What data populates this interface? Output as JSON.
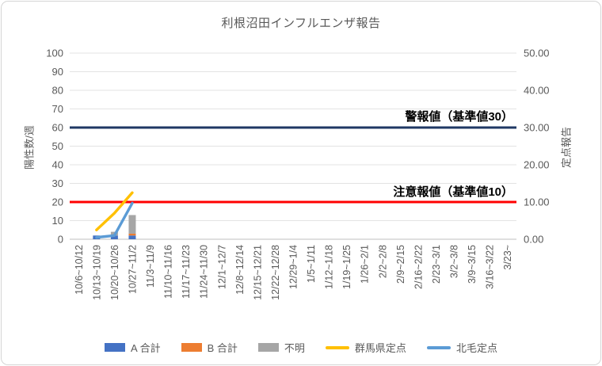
{
  "chart": {
    "title": "利根沼田インフルエンザ報告",
    "left_axis_title": "陽性数/週",
    "right_axis_title": "定点報告"
  },
  "chart_data": {
    "type": "combo-stacked-bar-line",
    "title": "利根沼田インフルエンザ報告",
    "categories": [
      "10/6~10/12",
      "10/13~10/19",
      "10/20~10/26",
      "10/27~11/2",
      "11/3~11/9",
      "11/10~11/16",
      "11/17~11/23",
      "11/24~11/30",
      "12/1~12/7",
      "12/8~12/14",
      "12/15~12/21",
      "12/22~12/28",
      "12/29~1/4",
      "1/5~1/11",
      "1/12~1/18",
      "1/19~1/25",
      "1/26~2/1",
      "2/2~2/8",
      "2/9~2/15",
      "2/16~2/22",
      "2/23~3/1",
      "3/2~3/8",
      "3/9~3/15",
      "3/16~3/22",
      "3/23~"
    ],
    "left_axis": {
      "title": "陽性数/週",
      "min": 0,
      "max": 100,
      "step": 10,
      "tick_labels": [
        "0",
        "10",
        "20",
        "30",
        "40",
        "50",
        "60",
        "70",
        "80",
        "90",
        "100"
      ]
    },
    "right_axis": {
      "title": "定点報告",
      "min": 0,
      "max": 50,
      "step": 10,
      "tick_labels": [
        "0.00",
        "10.00",
        "20.00",
        "30.00",
        "40.00",
        "50.00"
      ]
    },
    "grid": true,
    "legend_position": "bottom",
    "bar_series": [
      {
        "name": "A 合計",
        "color": "#4472c4",
        "axis": "left",
        "stacked": true,
        "values": [
          0,
          2,
          2,
          2,
          0,
          0,
          0,
          0,
          0,
          0,
          0,
          0,
          0,
          0,
          0,
          0,
          0,
          0,
          0,
          0,
          0,
          0,
          0,
          0,
          0
        ]
      },
      {
        "name": "B 合計",
        "color": "#ed7d31",
        "axis": "left",
        "stacked": true,
        "values": [
          0,
          0,
          0,
          1,
          0,
          0,
          0,
          0,
          0,
          0,
          0,
          0,
          0,
          0,
          0,
          0,
          0,
          0,
          0,
          0,
          0,
          0,
          0,
          0,
          0
        ]
      },
      {
        "name": "不明",
        "color": "#a6a6a6",
        "axis": "left",
        "stacked": true,
        "values": [
          0,
          0,
          2,
          10,
          0,
          0,
          0,
          0,
          0,
          0,
          0,
          0,
          0,
          0,
          0,
          0,
          0,
          0,
          0,
          0,
          0,
          0,
          0,
          0,
          0
        ]
      }
    ],
    "line_series": [
      {
        "name": "群馬県定点",
        "color": "#ffc000",
        "axis": "right",
        "values": [
          null,
          2.5,
          7,
          12.5,
          null,
          null,
          null,
          null,
          null,
          null,
          null,
          null,
          null,
          null,
          null,
          null,
          null,
          null,
          null,
          null,
          null,
          null,
          null,
          null,
          null
        ]
      },
      {
        "name": "北毛定点",
        "color": "#5b9bd5",
        "axis": "right",
        "values": [
          null,
          0.5,
          1,
          9.7,
          null,
          null,
          null,
          null,
          null,
          null,
          null,
          null,
          null,
          null,
          null,
          null,
          null,
          null,
          null,
          null,
          null,
          null,
          null,
          null,
          null
        ]
      }
    ],
    "reference_lines": [
      {
        "label": "警報値（基準値30）",
        "axis": "right",
        "value": 30,
        "color": "#1f3864"
      },
      {
        "label": "注意報値（基準値10）",
        "axis": "right",
        "value": 10,
        "color": "#ff0000"
      }
    ],
    "colors": {
      "title_text": "#595959",
      "axis_text": "#595959",
      "gridline": "#e3e3e3",
      "axis_line": "#bfbfbf",
      "bar_a": "#4472c4",
      "bar_b": "#ed7d31",
      "bar_unknown": "#a6a6a6",
      "line_gunma": "#ffc000",
      "line_hokumo": "#5b9bd5",
      "alert_line": "#1f3864",
      "warning_line": "#ff0000"
    }
  }
}
